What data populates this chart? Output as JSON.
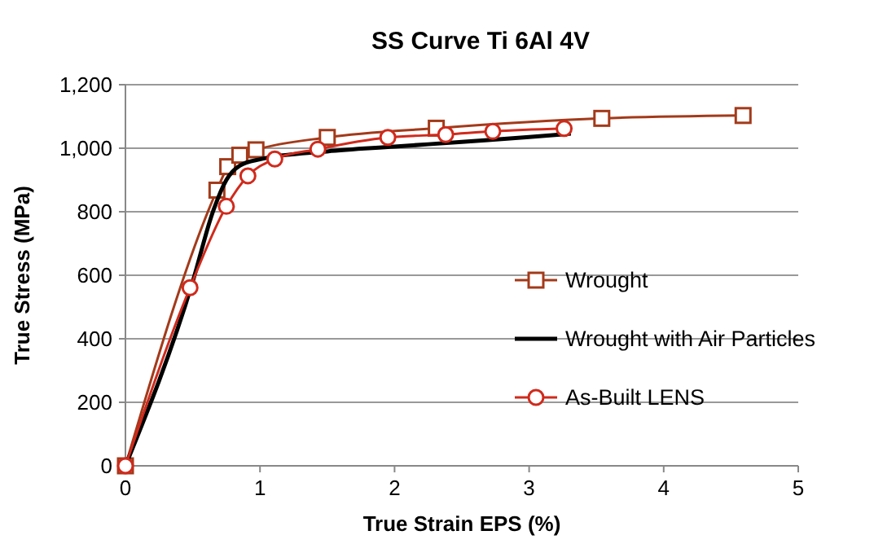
{
  "chart_data": {
    "type": "line",
    "title": "SS Curve Ti 6Al 4V",
    "xlabel": "True Strain EPS (%)",
    "ylabel": "True Stress (MPa)",
    "xlim": [
      0,
      5
    ],
    "xticks": [
      0,
      1,
      2,
      3,
      4,
      5
    ],
    "ylim": [
      0,
      1200
    ],
    "yticks": [
      0,
      200,
      400,
      600,
      800,
      {
        "value": 1000,
        "label": "1,000"
      },
      {
        "value": 1200,
        "label": "1,200"
      }
    ],
    "grid": "y",
    "legend": "right",
    "series": [
      {
        "name": "Wrought",
        "color": "#a33a1a",
        "marker": "square",
        "x": [
          0,
          0.68,
          0.76,
          0.85,
          0.97,
          1.5,
          2.31,
          3.54,
          4.59
        ],
        "values": [
          0,
          868,
          942,
          978,
          995,
          1034,
          1063,
          1094,
          1103
        ]
      },
      {
        "name": "Wrought with Air Particles",
        "color": "#000000",
        "marker": "none",
        "x": [
          0,
          0.5,
          0.65,
          0.75,
          0.85,
          1.0,
          1.5,
          2.0,
          2.5,
          3.0,
          3.31
        ],
        "values": [
          0,
          580,
          800,
          900,
          945,
          965,
          990,
          1005,
          1020,
          1035,
          1046
        ]
      },
      {
        "name": "As-Built LENS",
        "color": "#d02a1c",
        "marker": "circle",
        "x": [
          0,
          0.48,
          0.75,
          0.91,
          1.11,
          1.43,
          1.95,
          2.38,
          2.73,
          3.26
        ],
        "values": [
          0,
          561,
          817,
          913,
          966,
          997,
          1034,
          1043,
          1053,
          1062
        ]
      }
    ]
  }
}
